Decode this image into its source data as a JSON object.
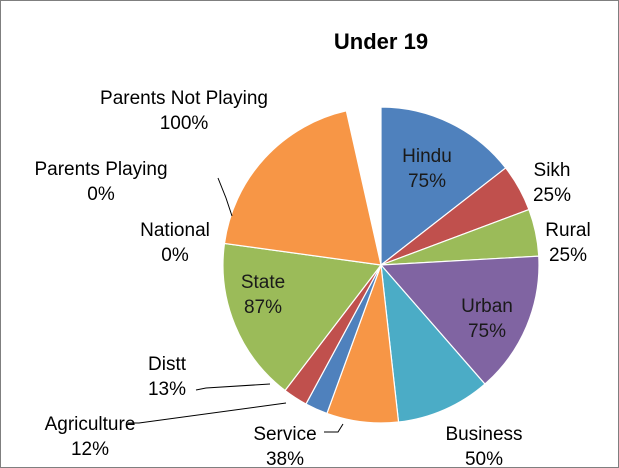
{
  "chart_data": {
    "type": "pie",
    "title": "Under 19",
    "legend": "none",
    "slices": [
      {
        "label": "Hindu",
        "value_label": "75%",
        "share": 0.1447,
        "color": "#4f81bd"
      },
      {
        "label": "Sikh",
        "value_label": "25%",
        "share": 0.0482,
        "color": "#c0504d"
      },
      {
        "label": "Rural",
        "value_label": "25%",
        "share": 0.0482,
        "color": "#9bbb59"
      },
      {
        "label": "Urban",
        "value_label": "75%",
        "share": 0.1447,
        "color": "#8064a2"
      },
      {
        "label": "Business",
        "value_label": "50%",
        "share": 0.0965,
        "color": "#4bacc6"
      },
      {
        "label": "Service",
        "value_label": "38%",
        "share": 0.0733,
        "color": "#f79646"
      },
      {
        "label": "Agriculture",
        "value_label": "12%",
        "share": 0.0232,
        "color": "#4f81bd"
      },
      {
        "label": "Distt",
        "value_label": "13%",
        "share": 0.0251,
        "color": "#c0504d"
      },
      {
        "label": "State",
        "value_label": "87%",
        "share": 0.1679,
        "color": "#9bbb59"
      },
      {
        "label": "National",
        "value_label": "0%",
        "share": 0,
        "color": "#8064a2"
      },
      {
        "label": "Parents Playing",
        "value_label": "0%",
        "share": 0,
        "color": "#4bacc6"
      },
      {
        "label": "Parents Not Playing",
        "value_label": "100%",
        "share": 0.193,
        "color": "#f79646"
      }
    ]
  }
}
